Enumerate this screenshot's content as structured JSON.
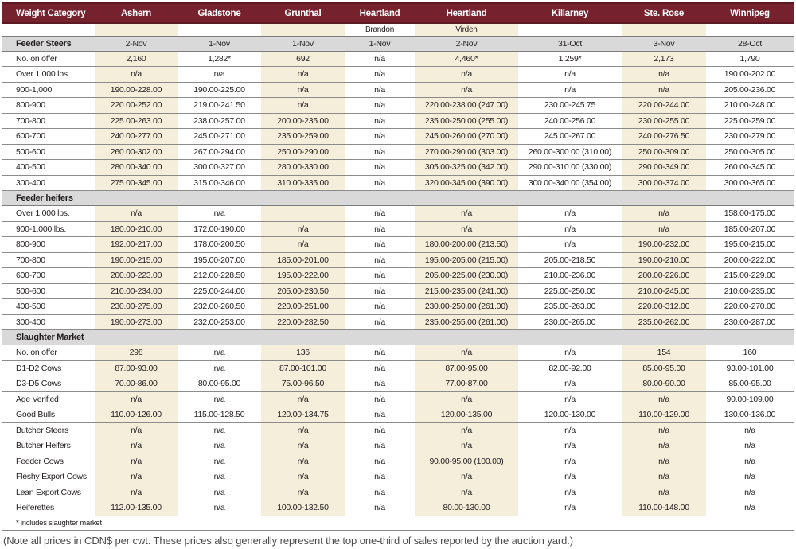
{
  "table": {
    "columns": [
      {
        "label": "Weight Category",
        "sub": "",
        "shaded": false
      },
      {
        "label": "Ashern",
        "sub": "",
        "shaded": true
      },
      {
        "label": "Gladstone",
        "sub": "",
        "shaded": false
      },
      {
        "label": "Grunthal",
        "sub": "",
        "shaded": true
      },
      {
        "label": "Heartland",
        "sub": "Brandon",
        "shaded": false
      },
      {
        "label": "Heartland",
        "sub": "Virden",
        "shaded": true
      },
      {
        "label": "Killarney",
        "sub": "",
        "shaded": false
      },
      {
        "label": "Ste. Rose",
        "sub": "",
        "shaded": true
      },
      {
        "label": "Winnipeg",
        "sub": "",
        "shaded": false
      }
    ],
    "sections": [
      {
        "title": "Feeder Steers",
        "bar_values": [
          "2-Nov",
          "1-Nov",
          "1-Nov",
          "1-Nov",
          "2-Nov",
          "31-Oct",
          "3-Nov",
          "28-Oct"
        ],
        "rows": [
          {
            "label": "No. on offer",
            "values": [
              "2,160",
              "1,282*",
              "692",
              "n/a",
              "4,460*",
              "1,259*",
              "2,173",
              "1,790"
            ]
          },
          {
            "label": "Over 1,000 lbs.",
            "values": [
              "n/a",
              "n/a",
              "n/a",
              "n/a",
              "n/a",
              "n/a",
              "n/a",
              "190.00-202.00"
            ]
          },
          {
            "label": "900-1,000",
            "values": [
              "190.00-228.00",
              "190.00-225.00",
              "n/a",
              "n/a",
              "n/a",
              "n/a",
              "n/a",
              "205.00-236.00"
            ]
          },
          {
            "label": "800-900",
            "values": [
              "220.00-252.00",
              "219.00-241.50",
              "n/a",
              "n/a",
              "220.00-238.00 (247.00)",
              "230.00-245.75",
              "220.00-244.00",
              "210.00-248.00"
            ]
          },
          {
            "label": "700-800",
            "values": [
              "225.00-263.00",
              "238.00-257.00",
              "200.00-235.00",
              "n/a",
              "235.00-250.00 (255.00)",
              "240.00-256.00",
              "230.00-255.00",
              "225.00-259.00"
            ]
          },
          {
            "label": "600-700",
            "values": [
              "240.00-277.00",
              "245.00-271.00",
              "235.00-259.00",
              "n/a",
              "245.00-260.00 (270.00)",
              "245.00-267.00",
              "240.00-276.50",
              "230.00-279.00"
            ]
          },
          {
            "label": "500-600",
            "values": [
              "260.00-302.00",
              "267.00-294.00",
              "250.00-290.00",
              "n/a",
              "270.00-290.00 (303.00)",
              "260.00-300.00 (310.00)",
              "250.00-309.00",
              "250.00-305.00"
            ]
          },
          {
            "label": "400-500",
            "values": [
              "280.00-340.00",
              "300.00-327.00",
              "280.00-330.00",
              "n/a",
              "305.00-325.00 (342.00)",
              "290.00-310.00 (330.00)",
              "290.00-349.00",
              "260.00-345.00"
            ]
          },
          {
            "label": "300-400",
            "values": [
              "275.00-345.00",
              "315.00-346.00",
              "310.00-335.00",
              "n/a",
              "320.00-345.00 (390.00)",
              "300.00-340.00 (354.00)",
              "300.00-374.00",
              "300.00-365.00"
            ]
          }
        ]
      },
      {
        "title": "Feeder heifers",
        "bar_values": [
          "",
          "",
          "",
          "",
          "",
          "",
          "",
          ""
        ],
        "rows": [
          {
            "label": "Over 1,000 lbs.",
            "values": [
              "n/a",
              "n/a",
              "",
              "n/a",
              "n/a",
              "n/a",
              "n/a",
              "158.00-175.00"
            ]
          },
          {
            "label": "900-1,000 lbs.",
            "values": [
              "180.00-210.00",
              "172.00-190.00",
              "n/a",
              "n/a",
              "n/a",
              "n/a",
              "n/a",
              "185.00-207.00"
            ]
          },
          {
            "label": "800-900",
            "values": [
              "192.00-217.00",
              "178.00-200.50",
              "n/a",
              "n/a",
              "180.00-200.00 (213.50)",
              "n/a",
              "190.00-232.00",
              "195.00-215.00"
            ]
          },
          {
            "label": "700-800",
            "values": [
              "190.00-215.00",
              "195.00-207.00",
              "185.00-201.00",
              "n/a",
              "195.00-205.00 (215.00)",
              "205.00-218.50",
              "190.00-210.00",
              "200.00-222.00"
            ]
          },
          {
            "label": "600-700",
            "values": [
              "200.00-223.00",
              "212.00-228.50",
              "195.00-222.00",
              "n/a",
              "205.00-225.00 (230.00)",
              "210.00-236.00",
              "200.00-226.00",
              "215.00-229.00"
            ]
          },
          {
            "label": "500-600",
            "values": [
              "210.00-234.00",
              "225.00-244.00",
              "205.00-230.50",
              "n/a",
              "215.00-235.00 (241.00)",
              "225.00-250.00",
              "210.00-245.00",
              "210.00-235.00"
            ]
          },
          {
            "label": "400-500",
            "values": [
              "230.00-275.00",
              "232.00-260.50",
              "220.00-251.00",
              "n/a",
              "230.00-250.00 (261.00)",
              "235.00-263.00",
              "220.00-312.00",
              "220.00-270.00"
            ]
          },
          {
            "label": "300-400",
            "values": [
              "190.00-273.00",
              "232.00-253.00",
              "220.00-282.50",
              "n/a",
              "235.00-255.00 (261.00)",
              "230.00-265.00",
              "235.00-262.00",
              "230.00-287.00"
            ]
          }
        ]
      },
      {
        "title": "Slaughter Market",
        "bar_values": [
          "",
          "",
          "",
          "",
          "",
          "",
          "",
          ""
        ],
        "rows": [
          {
            "label": "No. on offer",
            "values": [
              "298",
              "n/a",
              "136",
              "n/a",
              "n/a",
              "n/a",
              "154",
              "160"
            ]
          },
          {
            "label": "D1-D2 Cows",
            "values": [
              "87.00-93.00",
              "n/a",
              "87.00-101.00",
              "n/a",
              "87.00-95.00",
              "82.00-92.00",
              "85.00-95.00",
              "93.00-101.00"
            ]
          },
          {
            "label": "D3-D5 Cows",
            "values": [
              "70.00-86.00",
              "80.00-95.00",
              "75.00-96.50",
              "n/a",
              "77.00-87.00",
              "n/a",
              "80.00-90.00",
              "85.00-95.00"
            ]
          },
          {
            "label": "Age Verified",
            "values": [
              "n/a",
              "n/a",
              "n/a",
              "n/a",
              "n/a",
              "n/a",
              "n/a",
              "90.00-109.00"
            ]
          },
          {
            "label": "Good Bulls",
            "values": [
              "110.00-126.00",
              "115.00-128.50",
              "120.00-134.75",
              "n/a",
              "120.00-135.00",
              "120.00-130.00",
              "110.00-129.00",
              "130.00-136.00"
            ]
          },
          {
            "label": "Butcher Steers",
            "values": [
              "n/a",
              "n/a",
              "n/a",
              "n/a",
              "n/a",
              "n/a",
              "n/a",
              "n/a"
            ]
          },
          {
            "label": "Butcher Heifers",
            "values": [
              "n/a",
              "n/a",
              "n/a",
              "n/a",
              "n/a",
              "n/a",
              "n/a",
              "n/a"
            ]
          },
          {
            "label": "Feeder Cows",
            "values": [
              "n/a",
              "n/a",
              "n/a",
              "n/a",
              "90.00-95.00 (100.00)",
              "n/a",
              "n/a",
              "n/a"
            ]
          },
          {
            "label": "Fleshy Export Cows",
            "values": [
              "n/a",
              "n/a",
              "n/a",
              "n/a",
              "n/a",
              "n/a",
              "n/a",
              "n/a"
            ]
          },
          {
            "label": "Lean Export Cows",
            "values": [
              "n/a",
              "n/a",
              "n/a",
              "n/a",
              "n/a",
              "n/a",
              "n/a",
              "n/a"
            ]
          },
          {
            "label": "Heiferettes",
            "values": [
              "112.00-135.00",
              "n/a",
              "100.00-132.50",
              "n/a",
              "80.00-130.00",
              "n/a",
              "110.00-148.00",
              "n/a"
            ]
          }
        ]
      }
    ],
    "footnote": "* includes slaughter market"
  },
  "note": "(Note all prices in CDN$ per cwt. These prices also generally represent the top one-third of sales reported by the auction yard.)",
  "colors": {
    "header_bg": "#76222e",
    "header_border": "#5b1a23",
    "header_text": "#ffffff",
    "shaded_column": "#f5eedb",
    "section_bar": "#d9d9d9",
    "row_line": "#8d8b89",
    "note_text": "#4c4c4e"
  }
}
